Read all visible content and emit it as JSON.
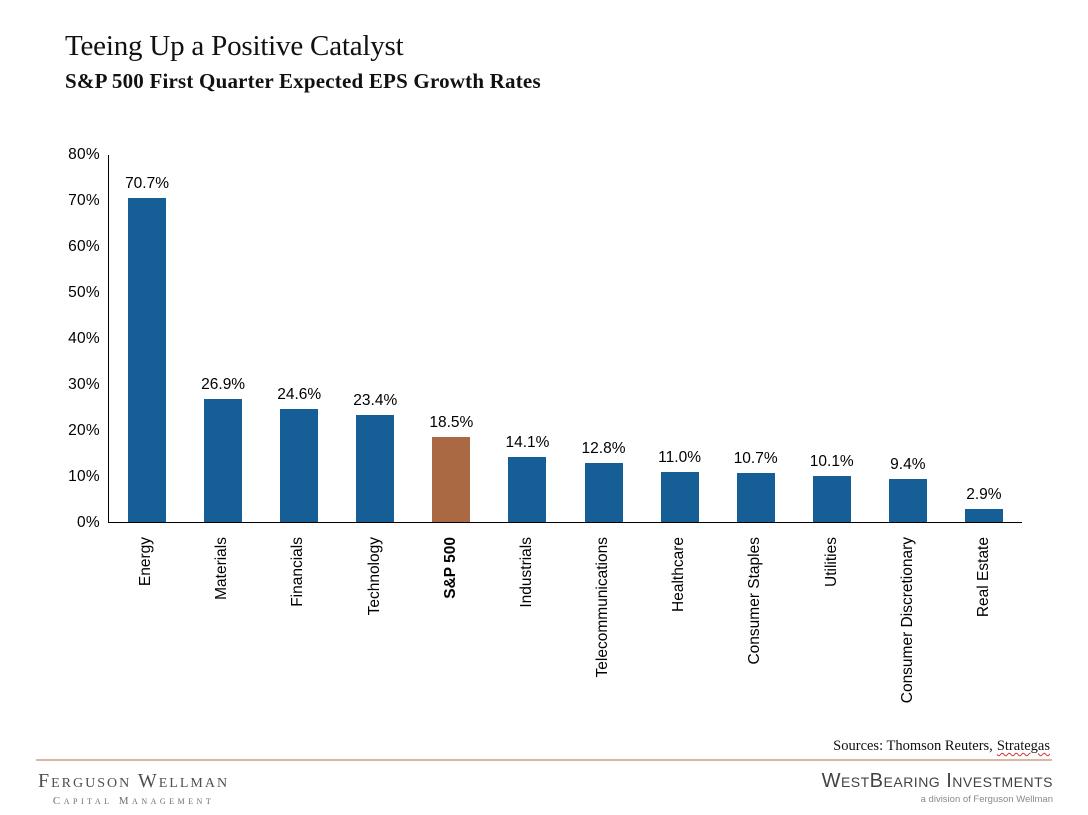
{
  "header": {
    "title": "Teeing Up a Positive Catalyst",
    "subtitle": "S&P 500 First Quarter Expected EPS Growth Rates"
  },
  "chart_data": {
    "type": "bar",
    "title": "S&P 500 First Quarter Expected EPS Growth Rates",
    "categories": [
      "Energy",
      "Materials",
      "Financials",
      "Technology",
      "S&P 500",
      "Industrials",
      "Telecommunications",
      "Healthcare",
      "Consumer Staples",
      "Utilities",
      "Consumer Discretionary",
      "Real Estate"
    ],
    "values": [
      70.7,
      26.9,
      24.6,
      23.4,
      18.5,
      14.1,
      12.8,
      11.0,
      10.7,
      10.1,
      9.4,
      2.9
    ],
    "data_labels": [
      "70.7%",
      "26.9%",
      "24.6%",
      "23.4%",
      "18.5%",
      "14.1%",
      "12.8%",
      "11.0%",
      "10.7%",
      "10.1%",
      "9.4%",
      "2.9%"
    ],
    "highlight_category": "S&P 500",
    "bar_color": "#155E96",
    "highlight_color": "#AA6942",
    "xlabel": "",
    "ylabel": "",
    "ylim": [
      0,
      80
    ],
    "ytick_step": 10,
    "ytick_labels": [
      "0%",
      "10%",
      "20%",
      "30%",
      "40%",
      "50%",
      "60%",
      "70%",
      "80%"
    ],
    "grid": false,
    "legend": false
  },
  "sources": {
    "prefix": "Sources: Thomson Reuters,",
    "highlight": "Strategas"
  },
  "footer": {
    "left": {
      "name": "Ferguson Wellman",
      "tagline": "Capital Management"
    },
    "right": {
      "name": "WestBearing Investments",
      "tagline": "a division of Ferguson Wellman"
    }
  },
  "colors": {
    "bar": "#155E96",
    "highlight": "#AA6942",
    "divider": "#D9B8A5",
    "squiggle": "#CC3333",
    "axis": "#000000"
  }
}
